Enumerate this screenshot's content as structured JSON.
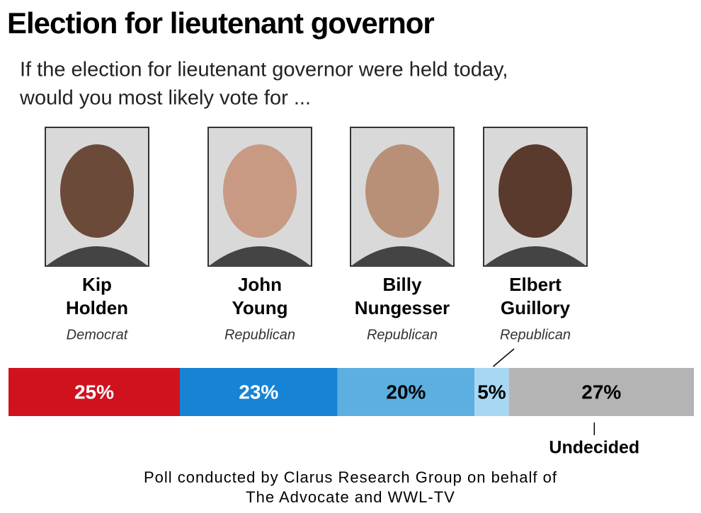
{
  "chart_data": {
    "type": "bar",
    "stacked": true,
    "orientation": "horizontal",
    "title": "Election for lieutenant governor",
    "subtitle": [
      "If the election for lieutenant governor were held today,",
      "would you most likely vote for ..."
    ],
    "xlim": [
      0,
      100
    ],
    "series": [
      {
        "name": "Kip Holden",
        "party": "Democrat",
        "color": "#d0121f",
        "label_color": "#ffffff",
        "values": [
          25
        ],
        "value_labels": [
          "25%"
        ]
      },
      {
        "name": "John Young",
        "party": "Republican",
        "color": "#1683d4",
        "label_color": "#ffffff",
        "values": [
          23
        ],
        "value_labels": [
          "23%"
        ]
      },
      {
        "name": "Billy Nungesser",
        "party": "Republican",
        "color": "#5cafe0",
        "label_color": "#000000",
        "values": [
          20
        ],
        "value_labels": [
          "20%"
        ]
      },
      {
        "name": "Elbert Guillory",
        "party": "Republican",
        "color": "#a8d7f3",
        "label_color": "#000000",
        "values": [
          5
        ],
        "value_labels": [
          "5%"
        ]
      },
      {
        "name": "Undecided",
        "color": "#b4b4b4",
        "label_color": "#000000",
        "values": [
          27
        ],
        "value_labels": [
          "27%"
        ]
      }
    ],
    "source": [
      "Poll conducted by Clarus Research Group on behalf of",
      "The Advocate and WWL-TV"
    ]
  }
}
